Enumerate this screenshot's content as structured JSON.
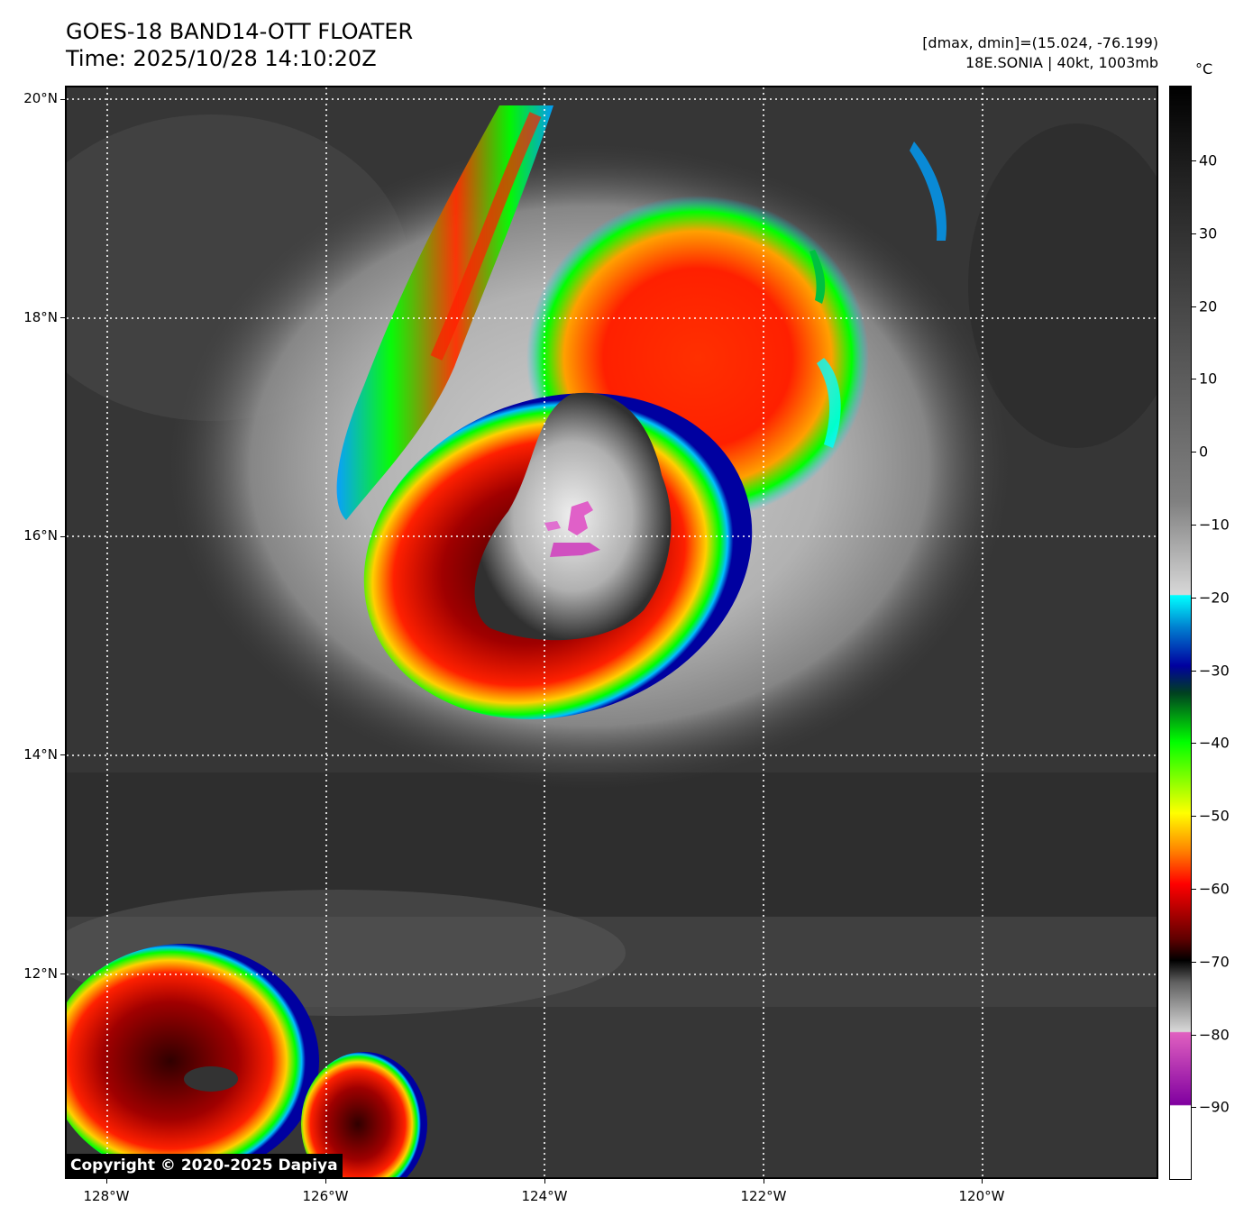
{
  "header": {
    "title_line1": "GOES-18 BAND14-OTT FLOATER",
    "title_line2": "Time: 2025/10/28 14:10:20Z",
    "info_line1": "[dmax, dmin]=(15.024, -76.199)",
    "info_line2": "18E.SONIA | 40kt, 1003mb"
  },
  "map": {
    "lat_labels": [
      "20°N",
      "18°N",
      "16°N",
      "14°N",
      "12°N"
    ],
    "lon_labels": [
      "128°W",
      "126°W",
      "124°W",
      "122°W",
      "120°W"
    ],
    "storm": "18E.SONIA",
    "copyright": "Copyright © 2020-2025 Dapiya"
  },
  "colorbar": {
    "unit": "°C",
    "ticks": [
      "40",
      "30",
      "20",
      "10",
      "0",
      "−10",
      "−20",
      "−30",
      "−40",
      "−50",
      "−60",
      "−70",
      "−80",
      "−90"
    ],
    "colors": {
      "warm": "#000000",
      "mid": "#808080",
      "cold_gray": "#d8d8d8",
      "cyan": "#00ffff",
      "blue": "#0000a0",
      "green": "#00ff00",
      "yellow": "#ffff00",
      "red": "#ff0000",
      "dark_red": "#600000",
      "magenta": "#e060c0",
      "purple": "#8000a0"
    }
  }
}
